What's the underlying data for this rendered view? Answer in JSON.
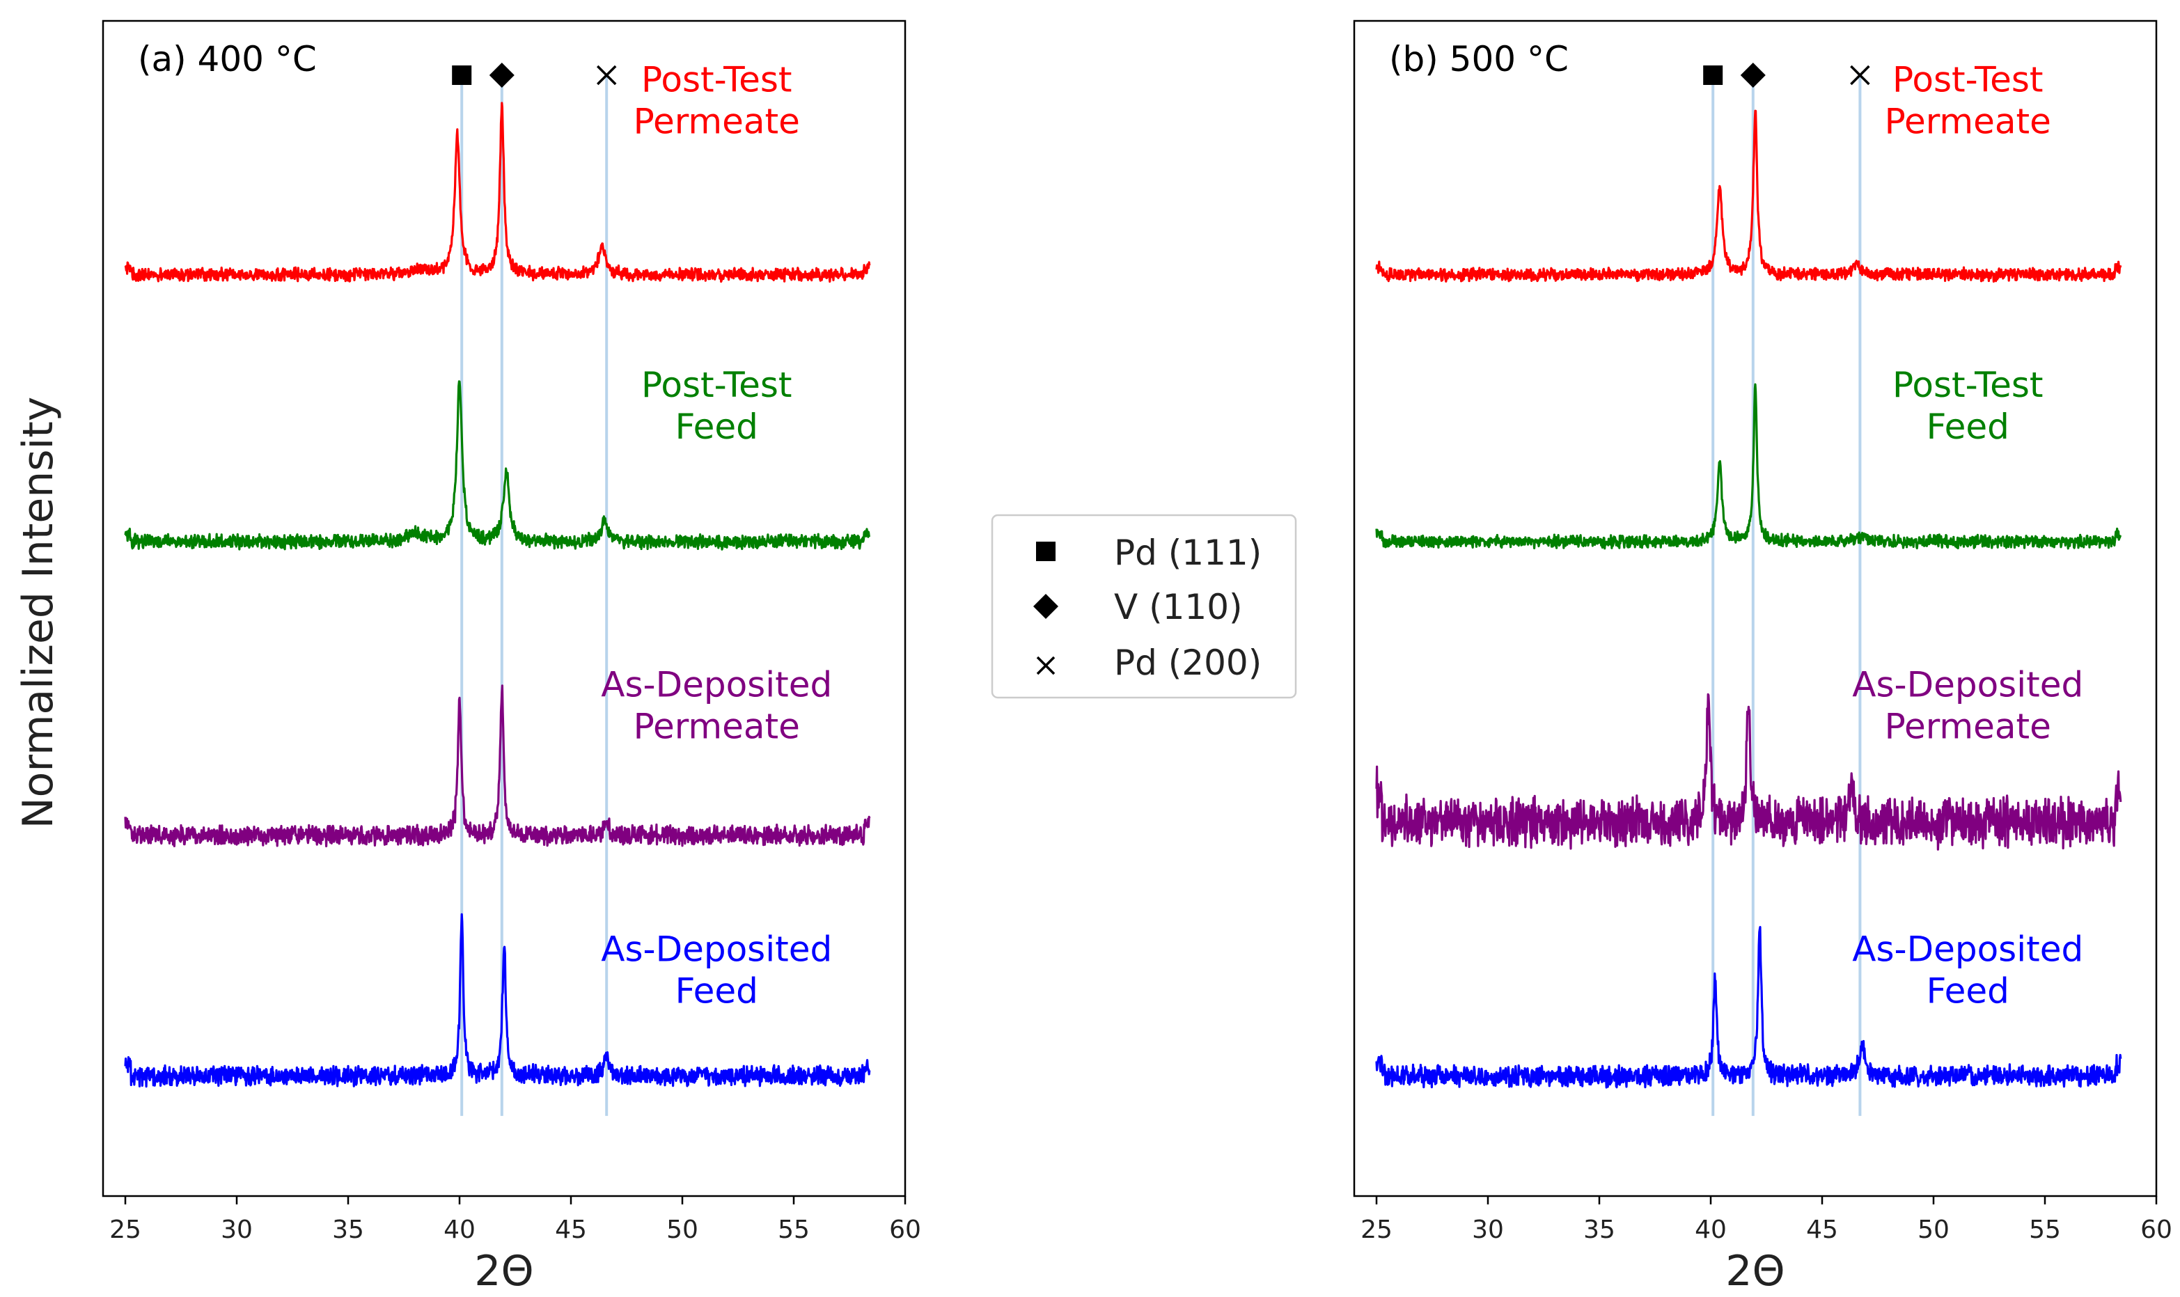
{
  "figure": {
    "ylabel": "Normalized Intensity",
    "legend": {
      "placement": "between-panels",
      "entries": [
        {
          "marker": "square",
          "label": "Pd (111)"
        },
        {
          "marker": "diamond",
          "label": "V (110)"
        },
        {
          "marker": "cross",
          "label": "Pd (200)"
        }
      ]
    },
    "reference_line_color": "#b8d4ec"
  },
  "chart_data": [
    {
      "type": "line",
      "title": "(a) 400 °C",
      "xlabel": "2Θ",
      "ylabel": "Normalized Intensity",
      "xlim": [
        24,
        60
      ],
      "x_ticks": [
        25,
        30,
        35,
        40,
        45,
        50,
        55,
        60
      ],
      "y_ticks_shown": false,
      "grid": false,
      "x_range_measured": [
        25,
        58.4
      ],
      "reference_peaks": [
        {
          "marker": "square",
          "label": "Pd (111)",
          "x": 40.1
        },
        {
          "marker": "diamond",
          "label": "V (110)",
          "x": 41.9
        },
        {
          "marker": "cross",
          "label": "Pd (200)",
          "x": 46.6
        }
      ],
      "series": [
        {
          "name": "Post-Test Permeate",
          "label_lines": [
            "Post-Test",
            "Permeate"
          ],
          "color": "#ff0000",
          "offset": 3.0,
          "noise": 0.018,
          "peaks": [
            {
              "x": 39.9,
              "height": 0.52,
              "width": 0.28
            },
            {
              "x": 41.9,
              "height": 0.62,
              "width": 0.22
            },
            {
              "x": 46.4,
              "height": 0.1,
              "width": 0.4
            },
            {
              "x": 38.2,
              "height": 0.02,
              "width": 0.8
            }
          ]
        },
        {
          "name": "Post-Test Feed",
          "label_lines": [
            "Post-Test",
            "Feed"
          ],
          "color": "#008000",
          "offset": 2.0,
          "noise": 0.02,
          "peaks": [
            {
              "x": 40.0,
              "height": 0.6,
              "width": 0.28
            },
            {
              "x": 42.1,
              "height": 0.26,
              "width": 0.32
            },
            {
              "x": 46.5,
              "height": 0.08,
              "width": 0.35
            },
            {
              "x": 38.0,
              "height": 0.03,
              "width": 0.8
            }
          ]
        },
        {
          "name": "As-Deposited Permeate",
          "label_lines": [
            "As-Deposited",
            "Permeate"
          ],
          "color": "#800080",
          "offset": 0.9,
          "noise": 0.028,
          "peaks": [
            {
              "x": 40.0,
              "height": 0.52,
              "width": 0.18
            },
            {
              "x": 41.9,
              "height": 0.56,
              "width": 0.18
            },
            {
              "x": 46.6,
              "height": 0.06,
              "width": 0.25
            }
          ]
        },
        {
          "name": "As-Deposited Feed",
          "label_lines": [
            "As-Deposited",
            "Feed"
          ],
          "color": "#0000ff",
          "offset": 0.0,
          "noise": 0.028,
          "peaks": [
            {
              "x": 40.1,
              "height": 0.58,
              "width": 0.18
            },
            {
              "x": 42.0,
              "height": 0.5,
              "width": 0.18
            },
            {
              "x": 46.6,
              "height": 0.08,
              "width": 0.25
            }
          ]
        }
      ]
    },
    {
      "type": "line",
      "title": "(b) 500 °C",
      "xlabel": "2Θ",
      "ylabel": "",
      "xlim": [
        24,
        60
      ],
      "x_ticks": [
        25,
        30,
        35,
        40,
        45,
        50,
        55,
        60
      ],
      "y_ticks_shown": false,
      "grid": false,
      "x_range_measured": [
        25,
        58.4
      ],
      "reference_peaks": [
        {
          "marker": "square",
          "label": "Pd (111)",
          "x": 40.1
        },
        {
          "marker": "diamond",
          "label": "V (110)",
          "x": 41.9
        },
        {
          "marker": "cross",
          "label": "Pd (200)",
          "x": 46.7
        }
      ],
      "series": [
        {
          "name": "Post-Test Permeate",
          "label_lines": [
            "Post-Test",
            "Permeate"
          ],
          "color": "#ff0000",
          "offset": 3.0,
          "noise": 0.018,
          "peaks": [
            {
              "x": 40.4,
              "height": 0.32,
              "width": 0.28
            },
            {
              "x": 42.0,
              "height": 0.62,
              "width": 0.2
            },
            {
              "x": 46.5,
              "height": 0.04,
              "width": 0.4
            }
          ]
        },
        {
          "name": "Post-Test Feed",
          "label_lines": [
            "Post-Test",
            "Feed"
          ],
          "color": "#008000",
          "offset": 2.0,
          "noise": 0.018,
          "peaks": [
            {
              "x": 40.4,
              "height": 0.3,
              "width": 0.24
            },
            {
              "x": 42.0,
              "height": 0.6,
              "width": 0.18
            },
            {
              "x": 46.7,
              "height": 0.02,
              "width": 0.4
            }
          ]
        },
        {
          "name": "As-Deposited Permeate",
          "label_lines": [
            "As-Deposited",
            "Permeate"
          ],
          "color": "#800080",
          "offset": 0.95,
          "noise": 0.07,
          "peaks": [
            {
              "x": 39.9,
              "height": 0.46,
              "width": 0.2
            },
            {
              "x": 41.7,
              "height": 0.46,
              "width": 0.2
            },
            {
              "x": 46.3,
              "height": 0.16,
              "width": 0.25
            }
          ]
        },
        {
          "name": "As-Deposited Feed",
          "label_lines": [
            "As-Deposited",
            "Feed"
          ],
          "color": "#0000ff",
          "offset": 0.0,
          "noise": 0.03,
          "peaks": [
            {
              "x": 40.2,
              "height": 0.36,
              "width": 0.18
            },
            {
              "x": 42.2,
              "height": 0.56,
              "width": 0.18
            },
            {
              "x": 46.8,
              "height": 0.12,
              "width": 0.3
            }
          ]
        }
      ]
    }
  ]
}
